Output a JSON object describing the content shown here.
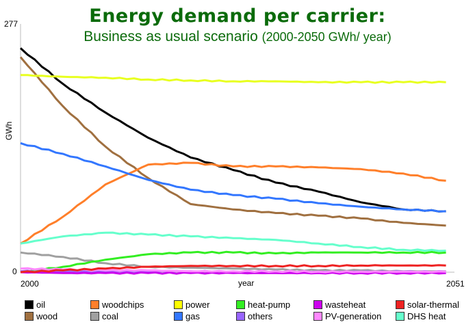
{
  "chart_data": {
    "type": "line",
    "title": "Energy demand per carrier:",
    "subtitle_main": "Business as usual scenario",
    "subtitle_small": "(2000-2050 GWh/ year)",
    "xlabel": "year",
    "ylabel": "GWh",
    "x_tick_labels": [
      "2000",
      "2051"
    ],
    "y_tick_labels": [
      "277",
      "0"
    ],
    "xlim": [
      2000,
      2051
    ],
    "ylim": [
      0,
      277
    ],
    "grid": false,
    "legend_position": "bottom",
    "x": [
      2000,
      2005,
      2010,
      2015,
      2020,
      2025,
      2030,
      2035,
      2040,
      2045,
      2050
    ],
    "series": [
      {
        "name": "oil",
        "color": "#000000",
        "values": [
          250,
          210,
          178,
          150,
          128,
          114,
          100,
          90,
          78,
          70,
          68
        ]
      },
      {
        "name": "wood",
        "color": "#a07040",
        "values": [
          240,
          185,
          140,
          105,
          76,
          70,
          66,
          63,
          60,
          55,
          52
        ]
      },
      {
        "name": "woodchips",
        "color": "#ff7f2a",
        "values": [
          32,
          62,
          98,
          120,
          122,
          118,
          118,
          117,
          115,
          110,
          102
        ]
      },
      {
        "name": "coal",
        "color": "#a0a0a0",
        "values": [
          22,
          17,
          10,
          6,
          5,
          4,
          3,
          2,
          2,
          1,
          1
        ]
      },
      {
        "name": "power",
        "color": "#e8ff20",
        "values": [
          220,
          218,
          217,
          215,
          214,
          213,
          213,
          212,
          212,
          212,
          212
        ]
      },
      {
        "name": "gas",
        "color": "#3377ff",
        "values": [
          144,
          132,
          118,
          103,
          92,
          86,
          82,
          77,
          73,
          70,
          68
        ]
      },
      {
        "name": "heat-pump",
        "color": "#33ee22",
        "values": [
          0,
          6,
          14,
          20,
          22,
          22,
          21,
          22,
          22,
          22,
          22
        ]
      },
      {
        "name": "others",
        "color": "#9966ff",
        "values": [
          1,
          1,
          1,
          1,
          1,
          0.5,
          0.5,
          0.5,
          0.5,
          0.5,
          0.5
        ]
      },
      {
        "name": "wastheat",
        "color": "#cc00ee",
        "values": [
          0,
          -1,
          -1,
          -1,
          -1,
          -1,
          -1,
          -1,
          -1,
          -1,
          -1
        ]
      },
      {
        "name": "PV-generation",
        "color": "#ff88ff",
        "values": [
          4,
          3,
          2,
          2,
          1,
          1,
          1,
          0.5,
          0.5,
          0.5,
          0.5
        ]
      },
      {
        "name": "solar-thermal",
        "color": "#ee2222",
        "values": [
          0,
          2,
          4,
          6,
          7,
          7,
          7,
          7,
          7.5,
          7.5,
          7.5
        ]
      },
      {
        "name": "DHS heat",
        "color": "#66ffcc",
        "values": [
          32,
          40,
          44,
          42,
          40,
          38,
          36,
          32,
          28,
          25,
          24
        ]
      }
    ],
    "legend_rows": [
      [
        [
          "oil",
          "#000000"
        ],
        [
          "woodchips",
          "#ff7f2a"
        ],
        [
          "power",
          "#ffff00"
        ],
        [
          "heat-pump",
          "#33ee22"
        ],
        [
          "wasteheat",
          "#cc00ee"
        ],
        [
          "solar-thermal",
          "#ee2222"
        ]
      ],
      [
        [
          "wood",
          "#a07040"
        ],
        [
          "coal",
          "#a0a0a0"
        ],
        [
          "gas",
          "#3377ff"
        ],
        [
          "others",
          "#9966ff"
        ],
        [
          "PV-generation",
          "#ff88ff"
        ],
        [
          "DHS heat",
          "#66ffcc"
        ]
      ]
    ]
  }
}
